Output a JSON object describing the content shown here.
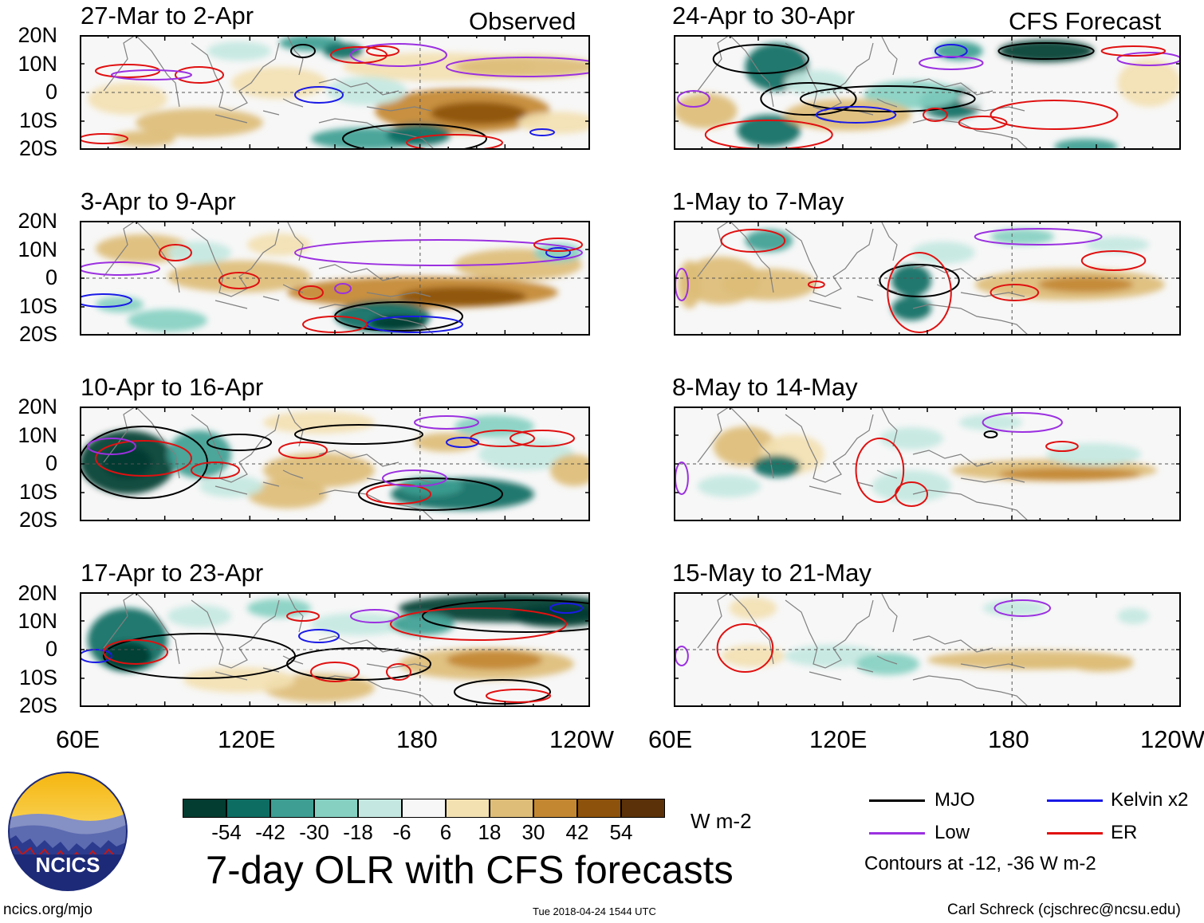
{
  "colors": {
    "mjo": "#000000",
    "low": "#9b30e0",
    "kelvin": "#1a1ae6",
    "er": "#e01010",
    "coast": "#808080",
    "scale": [
      "#033c31",
      "#0d6d63",
      "#3e9e93",
      "#86d0c2",
      "#c4e8e1",
      "#f7f7f7",
      "#f3e1b2",
      "#ddbd77",
      "#c38732",
      "#8d520b",
      "#5a3109"
    ]
  },
  "header": {
    "observed": "Observed",
    "forecast": "CFS Forecast"
  },
  "panels": {
    "left": [
      {
        "title": "27-Mar to 2-Apr"
      },
      {
        "title": "3-Apr to 9-Apr"
      },
      {
        "title": "10-Apr to 16-Apr"
      },
      {
        "title": "17-Apr to 23-Apr"
      }
    ],
    "right": [
      {
        "title": "24-Apr to 30-Apr"
      },
      {
        "title": "1-May to 7-May"
      },
      {
        "title": "8-May to 14-May"
      },
      {
        "title": "15-May to 21-May"
      }
    ]
  },
  "axes": {
    "lat_labels": [
      "20N",
      "10N",
      "0",
      "10S",
      "20S"
    ],
    "lon_labels": [
      "60E",
      "120E",
      "180",
      "120W"
    ]
  },
  "colorbar": {
    "labels": [
      "-54",
      "-42",
      "-30",
      "-18",
      "-6",
      "6",
      "18",
      "30",
      "42",
      "54"
    ],
    "units": "W m-2"
  },
  "legend": {
    "mjo": "MJO",
    "kelvin": "Kelvin x2",
    "low": "Low",
    "er": "ER",
    "note": "Contours at -12, -36 W m-2"
  },
  "footer": {
    "title": "7-day OLR with CFS forecasts",
    "logo_text": "NCICS",
    "url": "ncics.org/mjo",
    "timestamp": "Tue 2018-04-24 1544 UTC",
    "author": "Carl Schreck (cjschrec@ncsu.edu)"
  }
}
